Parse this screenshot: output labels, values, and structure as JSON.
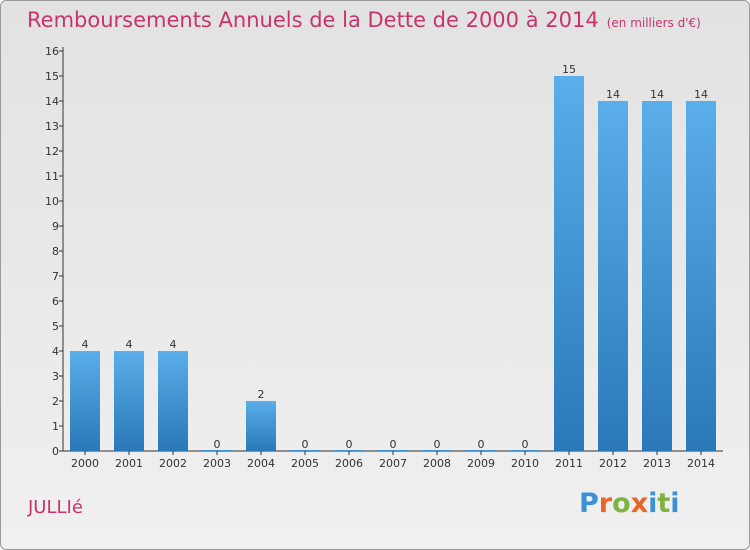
{
  "header": {
    "title": "Remboursements Annuels de la Dette de 2000 à 2014",
    "unit": "(en milliers d'€)"
  },
  "footer": {
    "commune": "JULLIé",
    "logo": "Proxiti"
  },
  "colors": {
    "title": "#c8336c",
    "bar_top": "#5aaeea",
    "bar_bottom": "#2a78b8",
    "logo_letters": [
      "#3d8fd6",
      "#e8662a",
      "#7cb342",
      "#e8662a",
      "#3d8fd6",
      "#7cb342",
      "#3d8fd6"
    ]
  },
  "chart_data": {
    "type": "bar",
    "categories": [
      "2000",
      "2001",
      "2002",
      "2003",
      "2004",
      "2005",
      "2006",
      "2007",
      "2008",
      "2009",
      "2010",
      "2011",
      "2012",
      "2013",
      "2014"
    ],
    "values": [
      4,
      4,
      4,
      0,
      2,
      0,
      0,
      0,
      0,
      0,
      0,
      15,
      14,
      14,
      14
    ],
    "data_labels": [
      "4",
      "4",
      "4",
      "0",
      "2",
      "0",
      "0",
      "0",
      "0",
      "0",
      "0",
      "15",
      "14",
      "14",
      "14"
    ],
    "yticks": [
      "0",
      "1",
      "2",
      "3",
      "4",
      "5",
      "6",
      "7",
      "8",
      "9",
      "10",
      "11",
      "12",
      "13",
      "14",
      "15",
      "16"
    ],
    "ylim": [
      0,
      16
    ],
    "grid": false,
    "legend": "none"
  }
}
